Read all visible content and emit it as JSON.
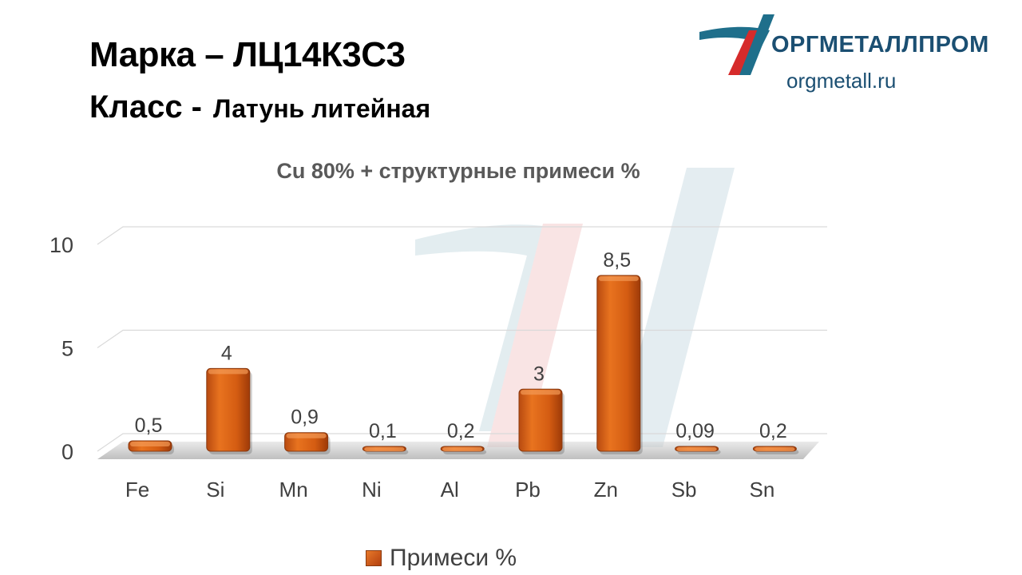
{
  "header": {
    "grade_label": "Марка",
    "grade_dash": "–",
    "grade_value": "ЛЦ14К3С3",
    "class_label": "Класс -",
    "class_value": "Латунь литейная"
  },
  "brand": {
    "name": "ОРГМЕТАЛЛПРОМ",
    "url": "orgmetall.ru",
    "colors": {
      "blue": "#1b4f72",
      "red": "#d62b2b",
      "teal": "#1f6f8b"
    }
  },
  "chart_data": {
    "type": "bar",
    "title": "Cu 80% + структурные примеси %",
    "categories": [
      "Fe",
      "Si",
      "Mn",
      "Ni",
      "Al",
      "Pb",
      "Zn",
      "Sb",
      "Sn"
    ],
    "series": [
      {
        "name": "Примеси %",
        "values": [
          0.5,
          4,
          0.9,
          0.1,
          0.2,
          3,
          8.5,
          0.09,
          0.2
        ],
        "labels": [
          "0,5",
          "4",
          "0,9",
          "0,1",
          "0,2",
          "3",
          "8,5",
          "0,09",
          "0,2"
        ],
        "color": "#d35400"
      }
    ],
    "ylim": [
      0,
      10
    ],
    "yticks": [
      0,
      5,
      10
    ],
    "grid": true,
    "legend": "bottom"
  }
}
